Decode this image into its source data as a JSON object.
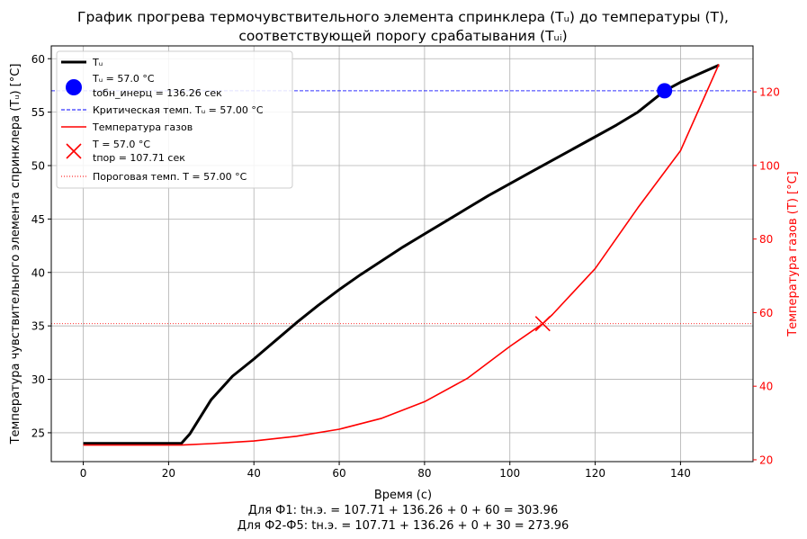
{
  "chart_data": {
    "type": "line",
    "title_line1": "График прогрева термочувствительного элемента спринклера (Tᵤ) до температуры (T),",
    "title_line2": "соответствующей порогу срабатывания (Tᵤᵢ)",
    "xlabel": "Время (с)",
    "ylabel_left": "Температура чувствительного элемента спринклера (Tᵤ) [°C]",
    "ylabel_right": "Температура газов (T) [°C]",
    "footer_line1": "Для Ф1: tн.э. = 107.71 + 136.26 + 0 + 60 = 303.96",
    "footer_line2": "Для Ф2-Ф5: tн.э. = 107.71 + 136.26 + 0 + 30 = 273.96",
    "xlim": [
      -7.5,
      157
    ],
    "ylim_left": [
      22.3,
      61.2
    ],
    "ylim_right": [
      19.5,
      132.5
    ],
    "x_ticks": [
      "0",
      "20",
      "40",
      "60",
      "80",
      "100",
      "120",
      "140"
    ],
    "y_left_ticks": [
      "25",
      "30",
      "35",
      "40",
      "45",
      "50",
      "55",
      "60"
    ],
    "y_right_ticks": [
      "20",
      "40",
      "60",
      "80",
      "100",
      "120"
    ],
    "grid": true,
    "legend_position": "upper-left",
    "colors": {
      "tu": "#000000",
      "gas": "#ff0000",
      "marker_tu": "#0000ff",
      "critical_line": "#0000ff",
      "threshold_line": "#ff0000",
      "right_axis": "#ff0000"
    },
    "series": [
      {
        "name": "Tᵤ",
        "axis": "left",
        "x": [
          0,
          5,
          10,
          15,
          20,
          23,
          25,
          30,
          35,
          40,
          45,
          50,
          55,
          60,
          65,
          70,
          75,
          80,
          85,
          90,
          95,
          100,
          105,
          110,
          115,
          120,
          125,
          130,
          136.26,
          140,
          145,
          149
        ],
        "y": [
          24.0,
          24.0,
          24.0,
          24.0,
          24.0,
          24.0,
          24.9,
          28.1,
          30.3,
          31.9,
          33.6,
          35.3,
          36.9,
          38.4,
          39.8,
          41.1,
          42.4,
          43.6,
          44.8,
          46.0,
          47.2,
          48.3,
          49.4,
          50.5,
          51.6,
          52.7,
          53.8,
          55.0,
          57.0,
          57.8,
          58.7,
          59.4
        ]
      },
      {
        "name": "Температура газов",
        "axis": "right",
        "x": [
          0,
          10,
          20,
          23,
          30,
          40,
          50,
          60,
          70,
          80,
          90,
          100,
          107.71,
          110,
          120,
          130,
          140,
          149
        ],
        "y": [
          24.0,
          24.0,
          24.0,
          24.0,
          24.4,
          25.1,
          26.4,
          28.3,
          31.3,
          35.8,
          42.1,
          50.8,
          57.0,
          59.5,
          72.0,
          88.5,
          104.0,
          127.5
        ]
      }
    ],
    "critical_line": {
      "name": "Критическая темп. Tᵤ = 57.00 °C",
      "axis": "left",
      "value": 57.0
    },
    "threshold_line": {
      "name": "Пороговая темп. T = 57.00 °C",
      "axis": "right",
      "value": 57.0
    },
    "point_tu": {
      "legend_line1": "Tᵤ = 57.0 °C",
      "legend_line2": "tобн_инерц = 136.26 сек",
      "x": 136.26,
      "y": 57.0,
      "axis": "left"
    },
    "point_gas": {
      "legend_line1": "T = 57.0 °C",
      "legend_line2": "tпор = 107.71 сек",
      "x": 107.71,
      "y": 57.0,
      "axis": "right"
    }
  }
}
